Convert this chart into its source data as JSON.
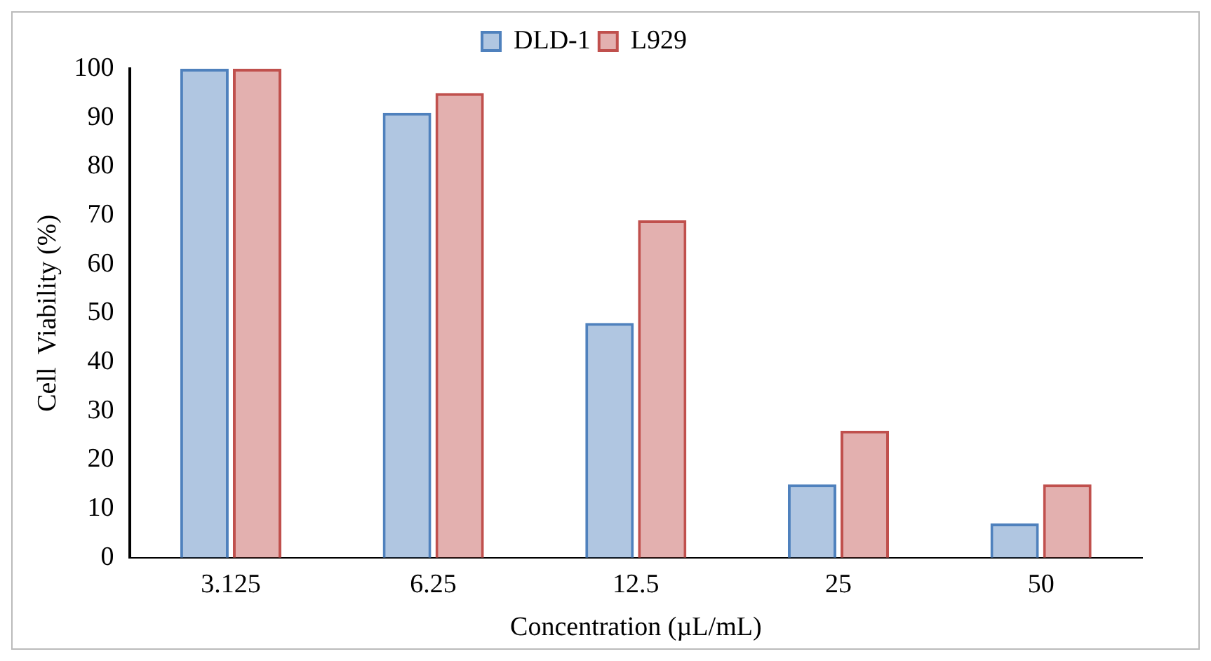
{
  "chart_data": {
    "type": "bar",
    "xlabel": "Concentration (µL/mL)",
    "ylabel": "Cell  Viability (%)",
    "categories": [
      "3.125",
      "6.25",
      "12.5",
      "25",
      "50"
    ],
    "series": [
      {
        "name": "DLD-1",
        "color": "#4f81bd",
        "values": [
          100,
          91,
          48,
          15,
          7
        ]
      },
      {
        "name": "L929",
        "color": "#c0504d",
        "values": [
          100,
          95,
          69,
          26,
          15
        ]
      }
    ],
    "ylim": [
      0,
      100
    ],
    "yticks": [
      0,
      10,
      20,
      30,
      40,
      50,
      60,
      70,
      80,
      90,
      100
    ],
    "grid": false,
    "legend": "top"
  }
}
